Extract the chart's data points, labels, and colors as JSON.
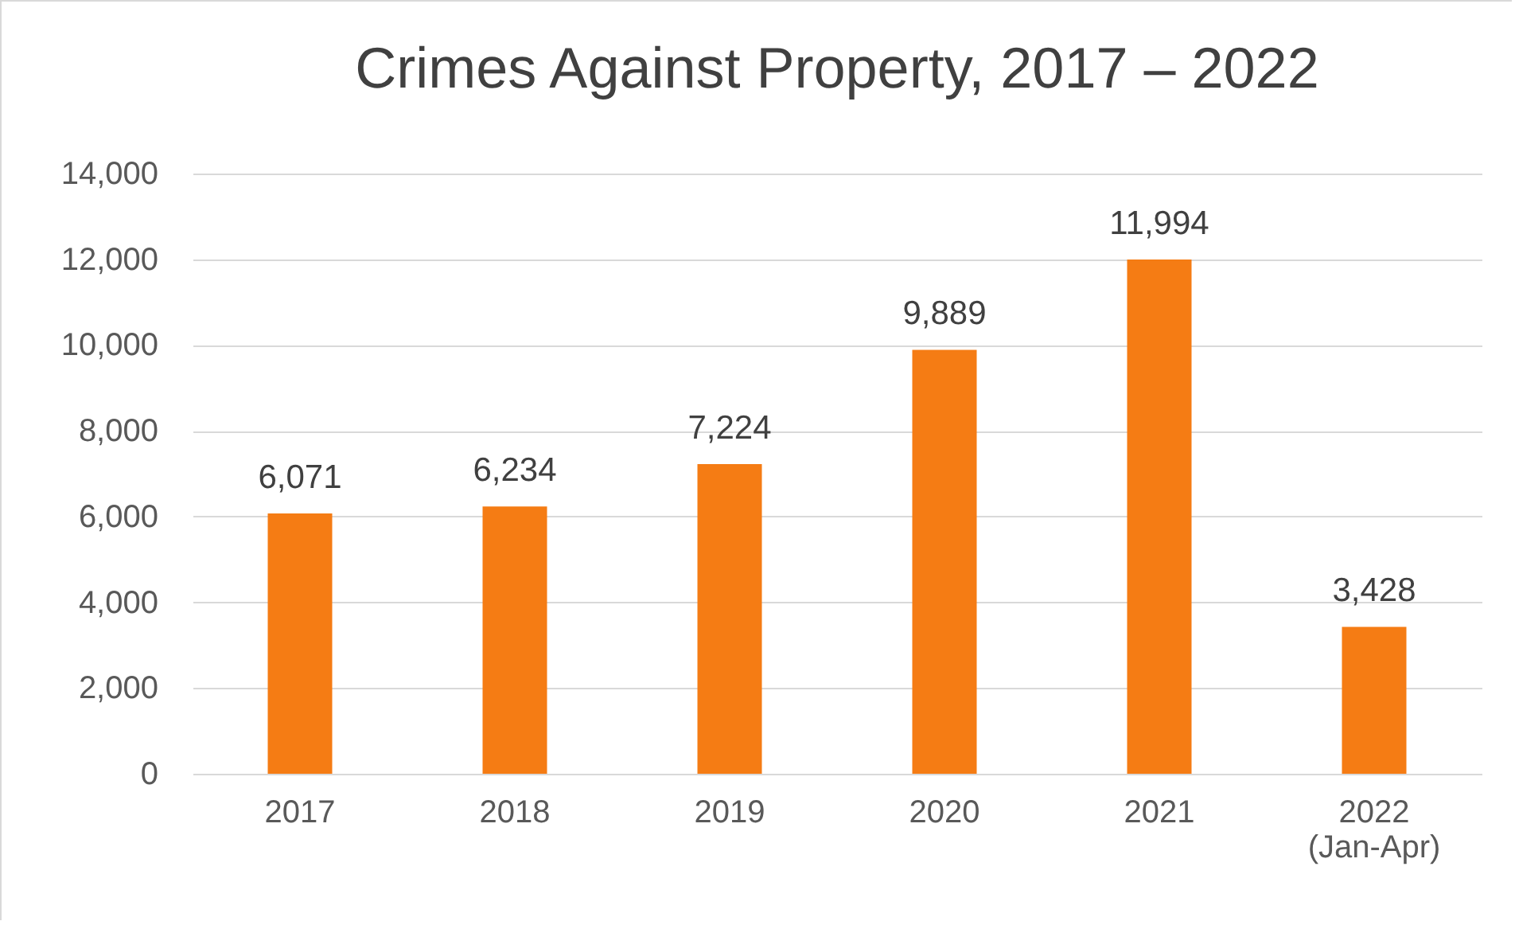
{
  "chart_data": {
    "type": "bar",
    "title": "Crimes Against Property, 2017 – 2022",
    "categories": [
      "2017",
      "2018",
      "2019",
      "2020",
      "2021",
      "2022\n(Jan-Apr)"
    ],
    "values": [
      6071,
      6234,
      7224,
      9889,
      11994,
      3428
    ],
    "color": "#f57c14",
    "value_labels": [
      "6,071",
      "6,234",
      "7,224",
      "9,889",
      "11,994",
      "3,428"
    ],
    "ylim": [
      0,
      14000
    ],
    "yticks": [
      0,
      {
        "value": 2000,
        "label": "2,000"
      },
      {
        "value": 4000,
        "label": "4,000"
      },
      {
        "value": 6000,
        "label": "6,000"
      },
      {
        "value": 8000,
        "label": "8,000"
      },
      {
        "value": 10000,
        "label": "10,000"
      },
      {
        "value": 12000,
        "label": "12,000"
      },
      {
        "value": 14000,
        "label": "14,000"
      }
    ],
    "grid": "y"
  }
}
